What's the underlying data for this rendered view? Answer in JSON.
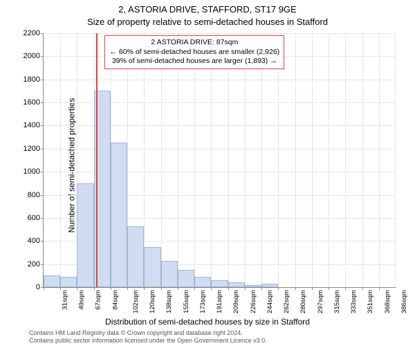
{
  "header": {
    "title": "2, ASTORIA DRIVE, STAFFORD, ST17 9GE",
    "subtitle": "Size of property relative to semi-detached houses in Stafford"
  },
  "axes": {
    "ylabel": "Number of semi-detached properties",
    "xlabel": "Distribution of semi-detached houses by size in Stafford",
    "label_fontsize": 12,
    "tick_fontsize": 11,
    "ymax": 2200,
    "ymin": 0,
    "ytick_step": 200,
    "yticks": [
      0,
      200,
      400,
      600,
      800,
      1000,
      1200,
      1400,
      1600,
      1800,
      2000,
      2200
    ],
    "xtick_labels": [
      "31sqm",
      "49sqm",
      "67sqm",
      "84sqm",
      "102sqm",
      "120sqm",
      "138sqm",
      "155sqm",
      "173sqm",
      "191sqm",
      "209sqm",
      "226sqm",
      "244sqm",
      "262sqm",
      "280sqm",
      "297sqm",
      "315sqm",
      "333sqm",
      "351sqm",
      "368sqm",
      "386sqm"
    ],
    "grid_color": "#e6e6e6",
    "axis_color": "#888888"
  },
  "chart": {
    "type": "histogram",
    "bar_fill": "#d0dcf0",
    "bar_stroke": "#9fb4d8",
    "background_color": "#ffffff",
    "values": [
      100,
      90,
      900,
      1700,
      1250,
      530,
      350,
      230,
      150,
      90,
      60,
      40,
      20,
      30,
      0,
      0,
      0,
      0,
      0,
      0,
      0
    ],
    "bar_count": 21
  },
  "reference": {
    "position_sqm": 87,
    "line_color": "#d94444",
    "line_width": 2,
    "annotation": {
      "line1": "2 ASTORIA DRIVE: 87sqm",
      "line2": "← 60% of semi-detached houses are smaller (2,926)",
      "line3": "39% of semi-detached houses are larger (1,893) →",
      "border_color": "#d94444",
      "background": "#ffffff",
      "fontsize": 10.5
    }
  },
  "footer": {
    "line1": "Contains HM Land Registry data © Crown copyright and database right 2024.",
    "line2": "Contains public sector information licensed under the Open Government Licence v3.0."
  }
}
